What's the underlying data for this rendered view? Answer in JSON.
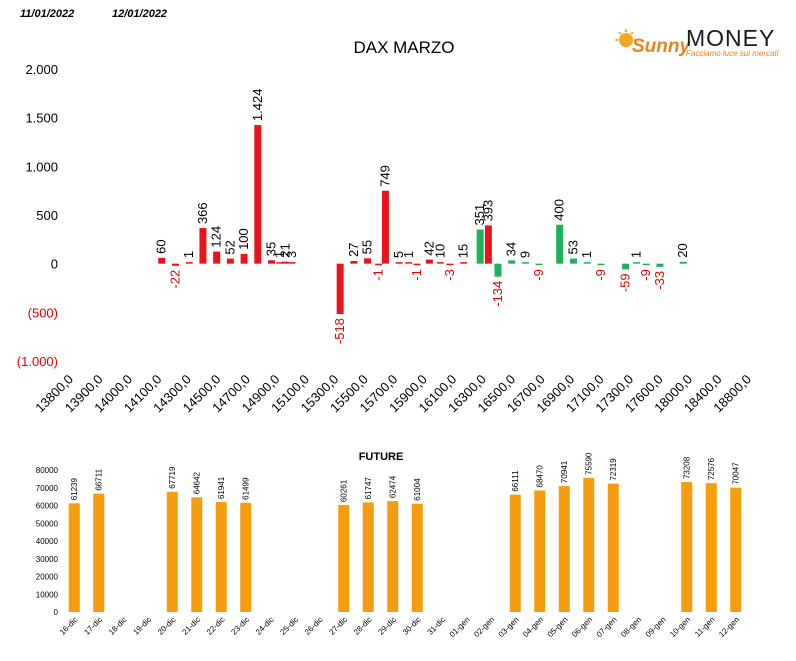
{
  "header": {
    "date_left": "11/01/2022",
    "date_right": "12/01/2022"
  },
  "logo": {
    "brand_script": "Sunny",
    "brand_word": "MONEY",
    "tagline": "Facciamo luce sui mercati",
    "colors": {
      "sun": "#f5a623",
      "script": "#e8821e",
      "word": "#1a1a1a",
      "tagline": "#e8821e"
    }
  },
  "colors": {
    "red": "#e8141a",
    "green": "#1fb05a",
    "orange": "#f59d0e",
    "negative_label": "#e00000"
  },
  "chart_data": [
    {
      "type": "bar",
      "title": "DAX MARZO",
      "ylim": [
        -1000,
        2000
      ],
      "y_ticks": [
        {
          "value": 2000,
          "label": "2.000"
        },
        {
          "value": 1500,
          "label": "1.500"
        },
        {
          "value": 1000,
          "label": "1.000"
        },
        {
          "value": 500,
          "label": "500"
        },
        {
          "value": 0,
          "label": "0"
        },
        {
          "value": -500,
          "label": "(500)"
        },
        {
          "value": -1000,
          "label": "(1.000)"
        }
      ],
      "x_tick_labels": [
        "13800,0",
        "13900,0",
        "14000,0",
        "14100,0",
        "14300,0",
        "14500,0",
        "14700,0",
        "14900,0",
        "15100,0",
        "15300,0",
        "15500,0",
        "15700,0",
        "15900,0",
        "16100,0",
        "16300,0",
        "16500,0",
        "16700,0",
        "16900,0",
        "17100,0",
        "17300,0",
        "17600,0",
        "18000,0",
        "18400,0",
        "18800,0"
      ],
      "n_slots": 47,
      "grid": false,
      "bars": [
        {
          "slot": 4,
          "value": 60,
          "label": "60",
          "color": "red"
        },
        {
          "slot": 5,
          "value": -22,
          "label": "-22",
          "color": "red"
        },
        {
          "slot": 6,
          "value": 1,
          "label": "1",
          "color": "red"
        },
        {
          "slot": 7,
          "value": 366,
          "label": "366",
          "color": "red"
        },
        {
          "slot": 8,
          "value": 124,
          "label": "124",
          "color": "red"
        },
        {
          "slot": 9,
          "value": 52,
          "label": "52",
          "color": "red"
        },
        {
          "slot": 10,
          "value": 100,
          "label": "100",
          "color": "red"
        },
        {
          "slot": 11,
          "value": 1424,
          "label": "1.424",
          "color": "red"
        },
        {
          "slot": 12,
          "value": 35,
          "label": "35",
          "color": "red"
        },
        {
          "slot": 12.6,
          "value": 1,
          "label": "1",
          "color": "red"
        },
        {
          "slot": 13,
          "value": 21,
          "label": "21",
          "color": "red"
        },
        {
          "slot": 13.5,
          "value": 3,
          "label": "3",
          "color": "red"
        },
        {
          "slot": 17,
          "value": -518,
          "label": "-518",
          "color": "red"
        },
        {
          "slot": 18,
          "value": 27,
          "label": "27",
          "color": "red"
        },
        {
          "slot": 19,
          "value": 55,
          "label": "55",
          "color": "red"
        },
        {
          "slot": 19.8,
          "value": -1,
          "label": "-1",
          "color": "red"
        },
        {
          "slot": 20.3,
          "value": 749,
          "label": "749",
          "color": "red"
        },
        {
          "slot": 21.3,
          "value": 5,
          "label": "5",
          "color": "red"
        },
        {
          "slot": 22,
          "value": 1,
          "label": "1",
          "color": "red"
        },
        {
          "slot": 22.6,
          "value": -1,
          "label": "-1",
          "color": "red"
        },
        {
          "slot": 23.5,
          "value": 42,
          "label": "42",
          "color": "red"
        },
        {
          "slot": 24.3,
          "value": 10,
          "label": "10",
          "color": "red"
        },
        {
          "slot": 25,
          "value": -3,
          "label": "-3",
          "color": "red"
        },
        {
          "slot": 26,
          "value": 15,
          "label": "15",
          "color": "red"
        },
        {
          "slot": 27.2,
          "value": 351,
          "label": "351",
          "color": "green"
        },
        {
          "slot": 27.8,
          "value": 393,
          "label": "393",
          "color": "red"
        },
        {
          "slot": 28.5,
          "value": -134,
          "label": "-134",
          "color": "green"
        },
        {
          "slot": 29.5,
          "value": 34,
          "label": "34",
          "color": "green"
        },
        {
          "slot": 30.5,
          "value": 9,
          "label": "9",
          "color": "green"
        },
        {
          "slot": 31.5,
          "value": -9,
          "label": "-9",
          "color": "green"
        },
        {
          "slot": 33,
          "value": 400,
          "label": "400",
          "color": "green"
        },
        {
          "slot": 34,
          "value": 53,
          "label": "53",
          "color": "green"
        },
        {
          "slot": 35,
          "value": 1,
          "label": "1",
          "color": "green"
        },
        {
          "slot": 36,
          "value": -9,
          "label": "-9",
          "color": "green"
        },
        {
          "slot": 37.8,
          "value": -59,
          "label": "-59",
          "color": "green"
        },
        {
          "slot": 38.6,
          "value": 1,
          "label": "1",
          "color": "green"
        },
        {
          "slot": 39.3,
          "value": -9,
          "label": "-9",
          "color": "green"
        },
        {
          "slot": 40.3,
          "value": -33,
          "label": "-33",
          "color": "green"
        },
        {
          "slot": 42,
          "value": 20,
          "label": "20",
          "color": "green"
        }
      ]
    },
    {
      "type": "bar",
      "title": "FUTURE",
      "ylim": [
        0,
        80000
      ],
      "y_ticks": [
        0,
        10000,
        20000,
        30000,
        40000,
        50000,
        60000,
        70000,
        80000
      ],
      "categories": [
        "16-dic",
        "17-dic",
        "18-dic",
        "19-dic",
        "20-dic",
        "21-dic",
        "22-dic",
        "23-dic",
        "24-dic",
        "25-dic",
        "26-dic",
        "27-dic",
        "28-dic",
        "29-dic",
        "30-dic",
        "31-dic",
        "01-gen",
        "02-gen",
        "03-gen",
        "04-gen",
        "05-gen",
        "06-gen",
        "07-gen",
        "08-gen",
        "09-gen",
        "10-gen",
        "11-gen",
        "12-gen"
      ],
      "values": [
        61239,
        66711,
        null,
        null,
        67719,
        64642,
        61941,
        61499,
        null,
        null,
        null,
        60261,
        61747,
        62474,
        61004,
        null,
        null,
        null,
        66111,
        68470,
        70941,
        75590,
        72319,
        null,
        null,
        73208,
        72576,
        70047
      ],
      "grid": false
    }
  ]
}
